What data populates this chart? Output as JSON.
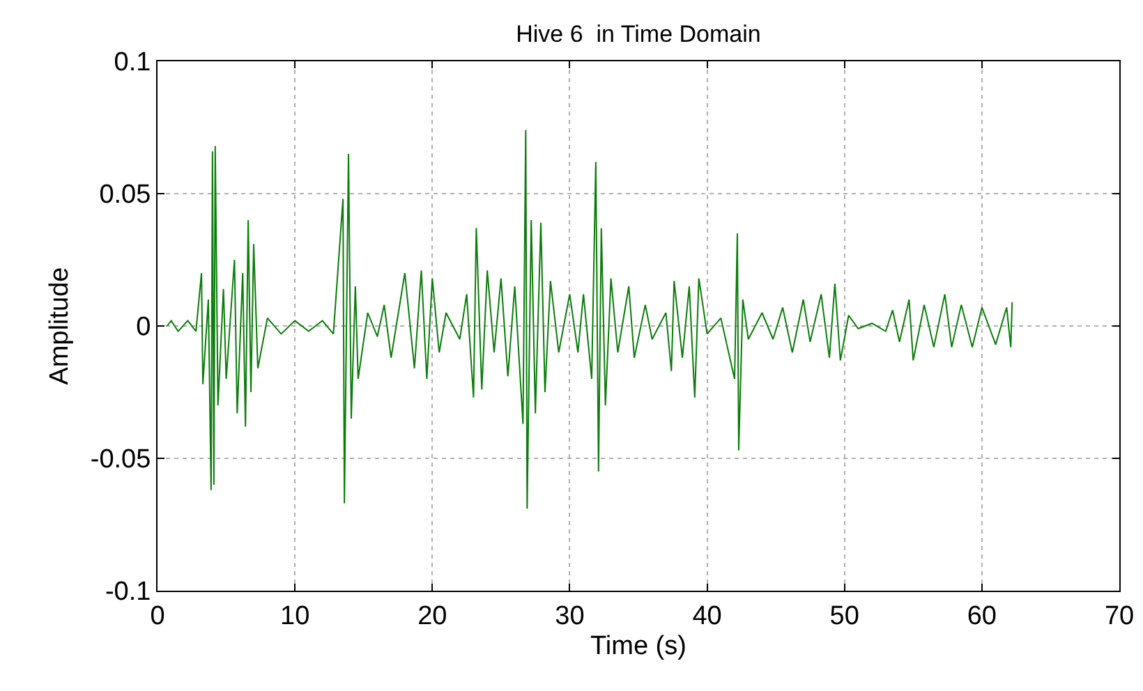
{
  "chart_data": {
    "type": "line",
    "title": "Hive 6  in Time Domain",
    "xlabel": "Time (s)",
    "ylabel": "Amplitude",
    "x": [
      0.7,
      1,
      1.5,
      2.2,
      2.8,
      3.2,
      3.3,
      3.7,
      3.9,
      4.0,
      4.1,
      4.2,
      4.4,
      4.8,
      5.0,
      5.6,
      5.8,
      6.2,
      6.4,
      6.6,
      6.8,
      7.0,
      7.3,
      8,
      9,
      10,
      11,
      12,
      12.8,
      13.5,
      13.6,
      13.9,
      14.1,
      14.4,
      14.6,
      15.3,
      16,
      16.5,
      17,
      18,
      18.7,
      19.2,
      19.6,
      20,
      20.5,
      21,
      22,
      22.5,
      23,
      23.2,
      23.6,
      24,
      24.5,
      25,
      25.5,
      26,
      26.6,
      26.8,
      26.9,
      27.2,
      27.5,
      27.9,
      28.2,
      28.6,
      29.2,
      30,
      30.6,
      31,
      31.6,
      31.9,
      32.1,
      32.3,
      32.6,
      33,
      33.5,
      34.3,
      34.7,
      35.5,
      36,
      37,
      37.4,
      37.6,
      38.2,
      38.7,
      39.1,
      39.4,
      40,
      41,
      42,
      42.2,
      42.3,
      42.6,
      43,
      44,
      44.8,
      45.5,
      46.2,
      47,
      47.5,
      48.3,
      48.9,
      49.3,
      49.7,
      50.3,
      51,
      52,
      53,
      53.5,
      54,
      54.7,
      55,
      55.8,
      56.5,
      57.3,
      57.8,
      58.5,
      59.3,
      60,
      61,
      61.8,
      62.1,
      62.2
    ],
    "series": [
      {
        "color": "#0a7d0a",
        "values": [
          0,
          0.002,
          -0.002,
          0.002,
          -0.002,
          0.02,
          -0.022,
          0.01,
          -0.062,
          0.066,
          -0.06,
          0.068,
          -0.03,
          0.014,
          -0.02,
          0.025,
          -0.033,
          0.02,
          -0.038,
          0.04,
          -0.025,
          0.031,
          -0.016,
          0.003,
          -0.003,
          0.002,
          -0.002,
          0.002,
          -0.003,
          0.048,
          -0.067,
          0.065,
          -0.035,
          0.015,
          -0.02,
          0.005,
          -0.004,
          0.008,
          -0.012,
          0.02,
          -0.016,
          0.021,
          -0.02,
          0.018,
          -0.01,
          0.005,
          -0.005,
          0.012,
          -0.027,
          0.037,
          -0.024,
          0.021,
          -0.01,
          0.018,
          -0.019,
          0.015,
          -0.037,
          0.074,
          -0.069,
          0.04,
          -0.033,
          0.039,
          -0.025,
          0.017,
          -0.01,
          0.012,
          -0.01,
          0.012,
          -0.02,
          0.062,
          -0.055,
          0.037,
          -0.03,
          0.018,
          -0.01,
          0.015,
          -0.012,
          0.008,
          -0.005,
          0.005,
          -0.017,
          0.017,
          -0.012,
          0.015,
          -0.027,
          0.018,
          -0.003,
          0.003,
          -0.02,
          0.035,
          -0.047,
          0.01,
          -0.005,
          0.005,
          -0.005,
          0.007,
          -0.01,
          0.01,
          -0.006,
          0.012,
          -0.012,
          0.016,
          -0.013,
          0.004,
          -0.001,
          0.001,
          -0.002,
          0.006,
          -0.006,
          0.01,
          -0.013,
          0.008,
          -0.008,
          0.012,
          -0.008,
          0.008,
          -0.008,
          0.007,
          -0.007,
          0.007,
          -0.008,
          0.009
        ]
      }
    ],
    "xlim": [
      0,
      70
    ],
    "xticks": [
      0,
      10,
      20,
      30,
      40,
      50,
      60,
      70
    ],
    "ylim": [
      -0.1,
      0.1
    ],
    "yticks": [
      -0.1,
      -0.05,
      0,
      0.05,
      0.1
    ],
    "grid": true,
    "marker": "none",
    "line_style": "solid"
  }
}
